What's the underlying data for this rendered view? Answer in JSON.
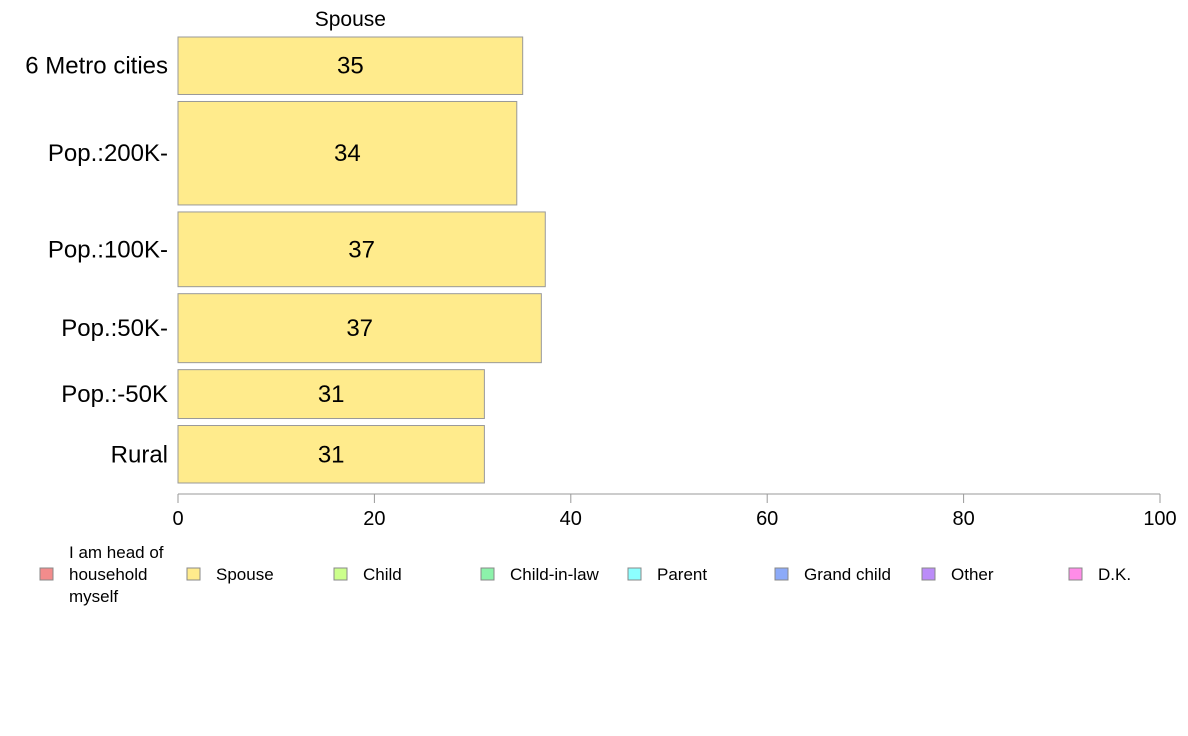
{
  "chart_data": {
    "type": "bar",
    "orientation": "horizontal",
    "series_title": "Spouse",
    "categories": [
      "6 Metro cities",
      "Pop.:200K-",
      "Pop.:100K-",
      "Pop.:50K-",
      "Pop.:-50K",
      "Rural"
    ],
    "values": [
      35,
      34,
      37,
      37,
      31,
      31
    ],
    "data_labels": [
      "35",
      "34",
      "37",
      "37",
      "31",
      "31"
    ],
    "bar_value_estimates": [
      35.1,
      34.5,
      37.4,
      37.0,
      31.2,
      31.2
    ],
    "relative_bar_heights": [
      1.0,
      1.8,
      1.3,
      1.2,
      0.85,
      1.0
    ],
    "xlim": [
      0,
      100
    ],
    "xticks": [
      0,
      20,
      40,
      60,
      80,
      100
    ],
    "xtick_labels": [
      "0",
      "20",
      "40",
      "60",
      "80",
      "100"
    ],
    "grid": false,
    "legend_position": "bottom",
    "colors": {
      "bar_fill": "#FFEB8C",
      "bar_stroke": "#999999",
      "axis": "#999999"
    },
    "legend": [
      {
        "label_lines": [
          "I am head of",
          "household",
          "myself"
        ],
        "color": "#F28C8C"
      },
      {
        "label_lines": [
          "Spouse"
        ],
        "color": "#FFEB8C"
      },
      {
        "label_lines": [
          "Child"
        ],
        "color": "#CCFF8C"
      },
      {
        "label_lines": [
          "Child-in-law"
        ],
        "color": "#8CF2AA"
      },
      {
        "label_lines": [
          "Parent"
        ],
        "color": "#8CFFFF"
      },
      {
        "label_lines": [
          "Grand child"
        ],
        "color": "#8CAAF8"
      },
      {
        "label_lines": [
          "Other"
        ],
        "color": "#BB8CF8"
      },
      {
        "label_lines": [
          "D.K."
        ],
        "color": "#FF8CE8"
      }
    ]
  }
}
